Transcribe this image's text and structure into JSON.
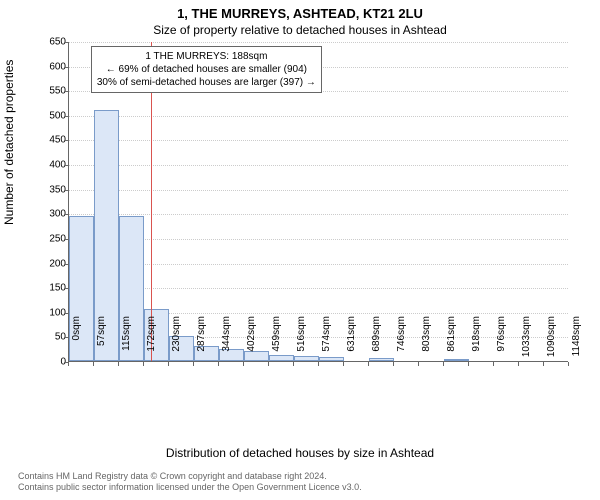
{
  "titles": {
    "main": "1, THE MURREYS, ASHTEAD, KT21 2LU",
    "sub": "Size of property relative to detached houses in Ashtead",
    "ylabel": "Number of detached properties",
    "xlabel": "Distribution of detached houses by size in Ashtead"
  },
  "callout": {
    "line1": "1 THE MURREYS: 188sqm",
    "line2": "← 69% of detached houses are smaller (904)",
    "line3": "30% of semi-detached houses are larger (397) →"
  },
  "footer": {
    "line1": "Contains HM Land Registry data © Crown copyright and database right 2024.",
    "line2": "Contains public sector information licensed under the Open Government Licence v3.0."
  },
  "chart": {
    "type": "histogram",
    "ylim": [
      0,
      650
    ],
    "ytick_step": 50,
    "x_bin_width": 57,
    "x_ticks": [
      0,
      57,
      115,
      172,
      230,
      287,
      344,
      402,
      459,
      516,
      574,
      631,
      689,
      746,
      803,
      861,
      918,
      976,
      1033,
      1090,
      1148
    ],
    "values": [
      295,
      510,
      295,
      105,
      50,
      30,
      25,
      20,
      12,
      10,
      8,
      0,
      6,
      0,
      0,
      5,
      0,
      0,
      0,
      0
    ],
    "marker_x": 188,
    "bar_fill": "#dce7f7",
    "bar_border": "#7a9bc9",
    "marker_color": "#d9534f",
    "grid_color": "#cccccc",
    "axis_color": "#666666",
    "background": "#ffffff",
    "font_family": "Arial",
    "title_fontsize": 13,
    "label_fontsize": 12,
    "tick_fontsize": 10
  }
}
